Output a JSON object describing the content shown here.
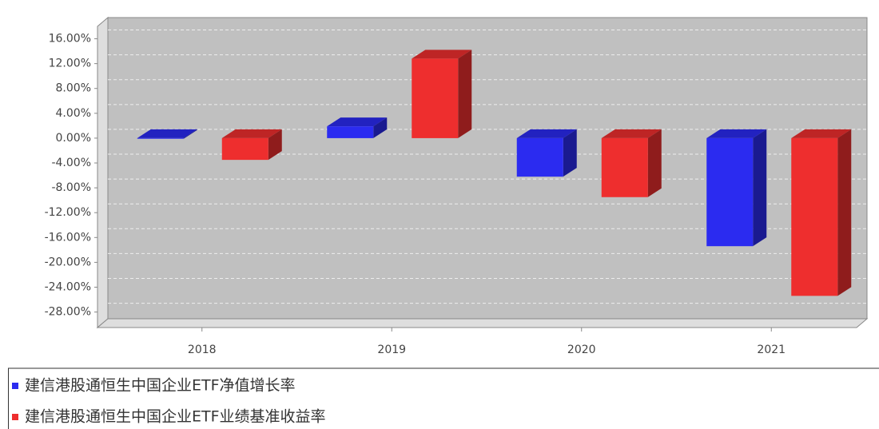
{
  "chart_data": {
    "type": "bar3d",
    "categories": [
      "2018",
      "2019",
      "2020",
      "2021"
    ],
    "series": [
      {
        "name": "建信港股通恒生中国企业ETF净值增长率",
        "color": "#2b2bf0",
        "values": [
          -0.1,
          1.9,
          -6.2,
          -17.4
        ]
      },
      {
        "name": "建信港股通恒生中国企业ETF业绩基准收益率",
        "color": "#ee2e2e",
        "values": [
          -3.5,
          12.8,
          -9.5,
          -25.4
        ]
      }
    ],
    "ylim": [
      -30.5,
      18
    ],
    "yticks": [
      {
        "value": 16,
        "label": "16.00%"
      },
      {
        "value": 12,
        "label": "12.00%"
      },
      {
        "value": 8,
        "label": "8.00%"
      },
      {
        "value": 4,
        "label": "4.00%"
      },
      {
        "value": 0,
        "label": "0.00%"
      },
      {
        "value": -4,
        "label": "-4.00%"
      },
      {
        "value": -8,
        "label": "-8.00%"
      },
      {
        "value": -12,
        "label": "-12.00%"
      },
      {
        "value": -16,
        "label": "-16.00%"
      },
      {
        "value": -20,
        "label": "-20.00%"
      },
      {
        "value": -24,
        "label": "-24.00%"
      },
      {
        "value": -28,
        "label": "-28.00%"
      }
    ],
    "grid": true
  }
}
